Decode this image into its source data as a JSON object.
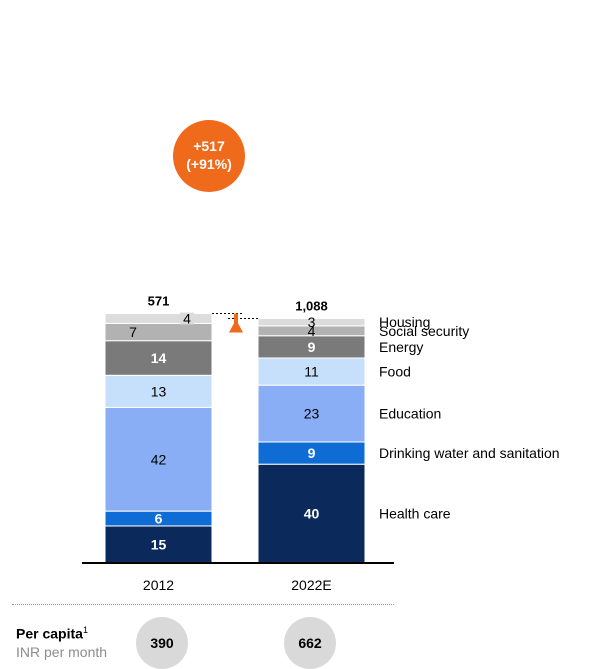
{
  "chart_data": {
    "type": "bar",
    "categories": [
      "2012",
      "2022E"
    ],
    "totals": [
      "571",
      "1,088"
    ],
    "series": [
      {
        "name": "Health care",
        "values": [
          15,
          40
        ],
        "color": "#0b2a5b",
        "text_color": "#ffffff",
        "bold": true
      },
      {
        "name": "Drinking water and sanitation",
        "values": [
          6,
          9
        ],
        "color": "#0e6cd4",
        "text_color": "#ffffff",
        "bold": true
      },
      {
        "name": "Education",
        "values": [
          42,
          23
        ],
        "color": "#8aaef6",
        "text_color": "#000000",
        "bold": false
      },
      {
        "name": "Food",
        "values": [
          13,
          11
        ],
        "color": "#c6dffa",
        "text_color": "#000000",
        "bold": false
      },
      {
        "name": "Energy",
        "values": [
          14,
          9
        ],
        "color": "#7a7a7a",
        "text_color": "#ffffff",
        "bold": true
      },
      {
        "name": "Social security",
        "values": [
          7,
          4
        ],
        "color": "#b2b2b2",
        "text_color": "#000000",
        "bold": false
      },
      {
        "name": "Housing",
        "values": [
          4,
          3
        ],
        "color": "#dcdcdc",
        "text_color": "#000000",
        "bold": false
      }
    ],
    "annotation": {
      "line1": "+517",
      "line2": "(+91%)",
      "color": "#f06a1b"
    }
  },
  "footer": {
    "per_capita_label": "Per capita",
    "superscript": "1",
    "unit": "INR per month",
    "values": [
      "390",
      "662"
    ]
  }
}
